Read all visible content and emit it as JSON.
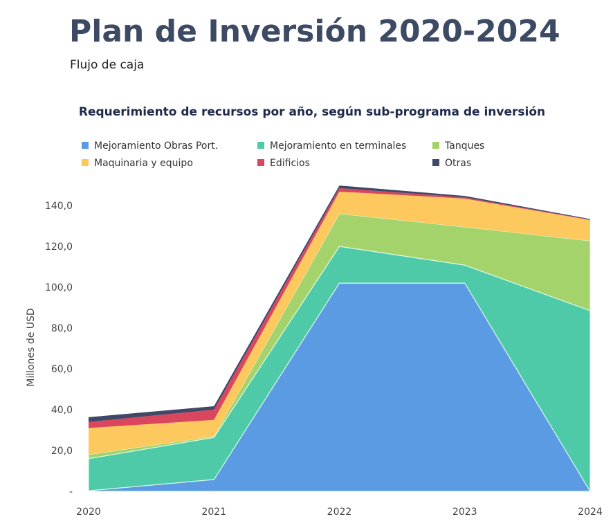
{
  "header": {
    "title": "Plan de Inversión 2020-2024",
    "subtitle": "Flujo de caja"
  },
  "chart_data": {
    "type": "area",
    "stacked": true,
    "title": "Requerimiento de recursos por año, según sub-programa de inversión",
    "ylabel": "Millones de USD",
    "xlabel": "",
    "categories": [
      "2020",
      "2021",
      "2022",
      "2023",
      "2024"
    ],
    "ylim": [
      0,
      150
    ],
    "yticks": [
      0,
      20,
      40,
      60,
      80,
      100,
      120,
      140
    ],
    "ytick_labels": [
      "-",
      "20,0",
      "40,0",
      "60,0",
      "80,0",
      "100,0",
      "120,0",
      "140,0"
    ],
    "grid": false,
    "legend_position": "top",
    "series": [
      {
        "name": "Mejoramiento Obras Port.",
        "color": "#5b9be3",
        "values": [
          0.3,
          5.8,
          102,
          102,
          0
        ]
      },
      {
        "name": "Mejoramiento en terminales",
        "color": "#4ecaa8",
        "values": [
          15.7,
          20.6,
          18,
          8.8,
          88.5
        ]
      },
      {
        "name": "Tanques",
        "color": "#a3d36a",
        "values": [
          2,
          0.6,
          16,
          18.7,
          34.2
        ]
      },
      {
        "name": "Maquinaria y equipo",
        "color": "#fdc85d",
        "values": [
          13,
          8,
          10.8,
          13.9,
          10.2
        ]
      },
      {
        "name": "Edificios",
        "color": "#d9465d",
        "values": [
          3,
          5,
          1.7,
          0.6,
          0.2
        ]
      },
      {
        "name": "Otras",
        "color": "#3f4867",
        "values": [
          2.3,
          1.7,
          1.3,
          0.7,
          0.3
        ]
      }
    ]
  }
}
